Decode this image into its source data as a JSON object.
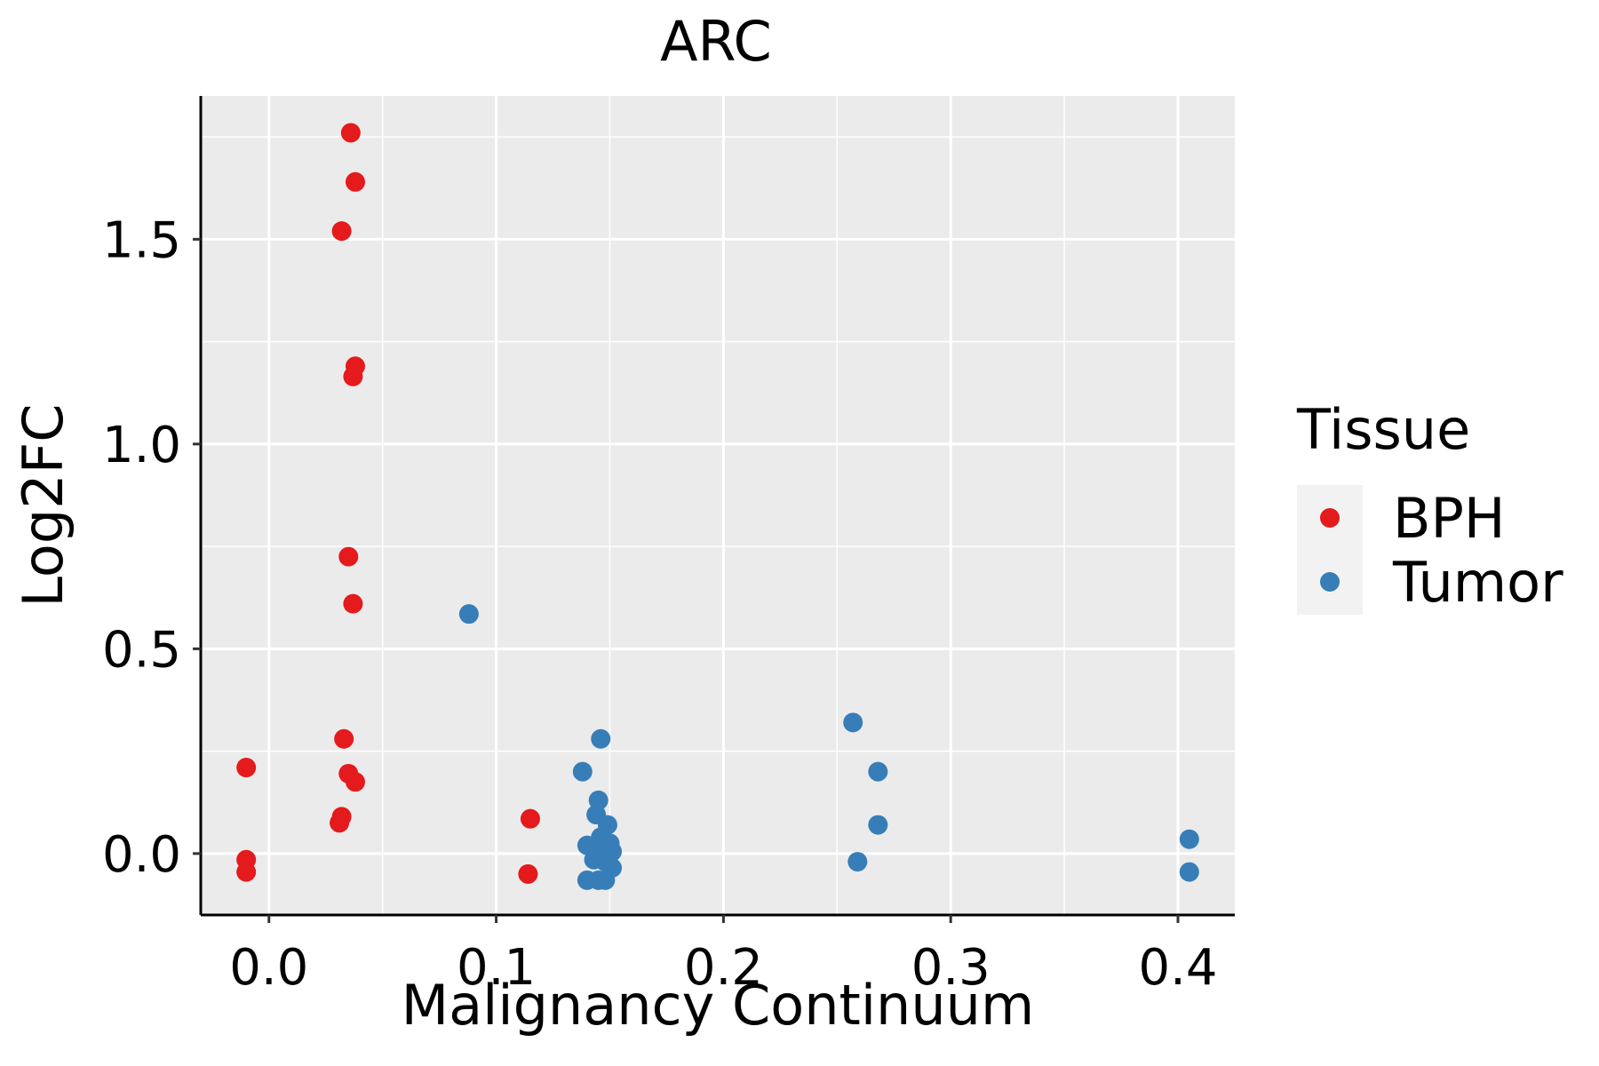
{
  "chart_data": {
    "type": "scatter",
    "title": "ARC",
    "xlabel": "Malignancy Continuum",
    "ylabel": "Log2FC",
    "xlim": [
      -0.03,
      0.425
    ],
    "ylim": [
      -0.15,
      1.85
    ],
    "x_ticks": [
      0.0,
      0.1,
      0.2,
      0.3,
      0.4
    ],
    "x_tick_labels": [
      "0.0",
      "0.1",
      "0.2",
      "0.3",
      "0.4"
    ],
    "y_ticks": [
      0.0,
      0.5,
      1.0,
      1.5
    ],
    "y_tick_labels": [
      "0.0",
      "0.5",
      "1.0",
      "1.5"
    ],
    "grid": true,
    "legend": {
      "title": "Tissue",
      "position": "right"
    },
    "series": [
      {
        "name": "BPH",
        "color": "#e41a1c",
        "points": [
          {
            "x": 0.036,
            "y": 1.76
          },
          {
            "x": 0.038,
            "y": 1.64
          },
          {
            "x": 0.032,
            "y": 1.52
          },
          {
            "x": 0.038,
            "y": 1.19
          },
          {
            "x": 0.037,
            "y": 1.165
          },
          {
            "x": 0.035,
            "y": 0.725
          },
          {
            "x": 0.037,
            "y": 0.61
          },
          {
            "x": 0.033,
            "y": 0.28
          },
          {
            "x": -0.01,
            "y": 0.21
          },
          {
            "x": 0.035,
            "y": 0.195
          },
          {
            "x": 0.038,
            "y": 0.175
          },
          {
            "x": 0.032,
            "y": 0.09
          },
          {
            "x": 0.031,
            "y": 0.075
          },
          {
            "x": 0.115,
            "y": 0.085
          },
          {
            "x": -0.01,
            "y": -0.015
          },
          {
            "x": -0.01,
            "y": -0.045
          },
          {
            "x": 0.114,
            "y": -0.05
          }
        ]
      },
      {
        "name": "Tumor",
        "color": "#377eb8",
        "points": [
          {
            "x": 0.088,
            "y": 0.585
          },
          {
            "x": 0.146,
            "y": 0.28
          },
          {
            "x": 0.138,
            "y": 0.2
          },
          {
            "x": 0.145,
            "y": 0.13
          },
          {
            "x": 0.144,
            "y": 0.095
          },
          {
            "x": 0.149,
            "y": 0.07
          },
          {
            "x": 0.146,
            "y": 0.04
          },
          {
            "x": 0.15,
            "y": 0.025
          },
          {
            "x": 0.14,
            "y": 0.02
          },
          {
            "x": 0.147,
            "y": 0.015
          },
          {
            "x": 0.151,
            "y": 0.005
          },
          {
            "x": 0.143,
            "y": -0.015
          },
          {
            "x": 0.148,
            "y": -0.02
          },
          {
            "x": 0.151,
            "y": -0.035
          },
          {
            "x": 0.14,
            "y": -0.065
          },
          {
            "x": 0.145,
            "y": -0.065
          },
          {
            "x": 0.148,
            "y": -0.065
          },
          {
            "x": 0.257,
            "y": 0.32
          },
          {
            "x": 0.268,
            "y": 0.2
          },
          {
            "x": 0.268,
            "y": 0.07
          },
          {
            "x": 0.259,
            "y": -0.02
          },
          {
            "x": 0.405,
            "y": 0.035
          },
          {
            "x": 0.405,
            "y": -0.045
          }
        ]
      }
    ]
  }
}
